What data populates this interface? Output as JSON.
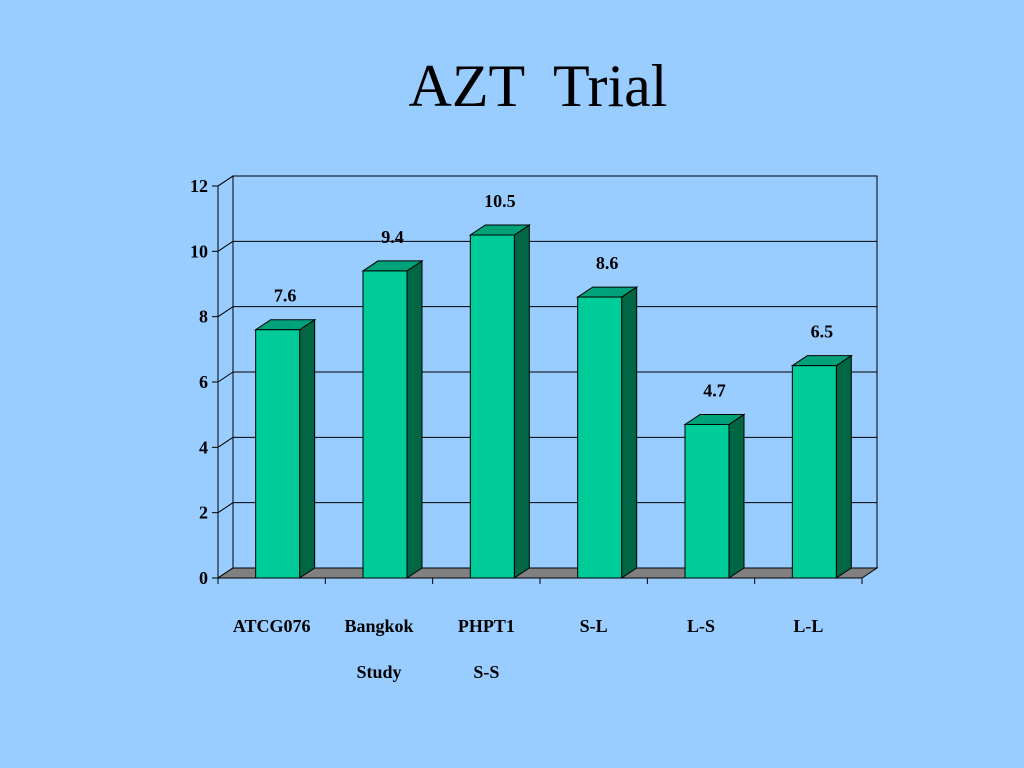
{
  "slide": {
    "title": "AZT  Trial"
  },
  "colors": {
    "background": "#99ccff",
    "bar_front": "#00cc99",
    "bar_side": "#006644",
    "bar_top": "#00a27a",
    "floor": "#808080"
  },
  "chart_data": {
    "type": "bar",
    "title": "",
    "xlabel": "",
    "ylabel": "",
    "ylim": [
      0,
      12
    ],
    "yticks": [
      0,
      2,
      4,
      6,
      8,
      10,
      12
    ],
    "grid": true,
    "three_d": true,
    "categories": [
      [
        "ATCG076"
      ],
      [
        "Bangkok",
        "Study"
      ],
      [
        "PHPT1",
        "S-S"
      ],
      [
        "S-L"
      ],
      [
        "L-S"
      ],
      [
        "L-L"
      ]
    ],
    "values": [
      7.6,
      9.4,
      10.5,
      8.6,
      4.7,
      6.5
    ],
    "data_labels": [
      "7.6",
      "9.4",
      "10.5",
      "8.6",
      "4.7",
      "6.5"
    ]
  }
}
